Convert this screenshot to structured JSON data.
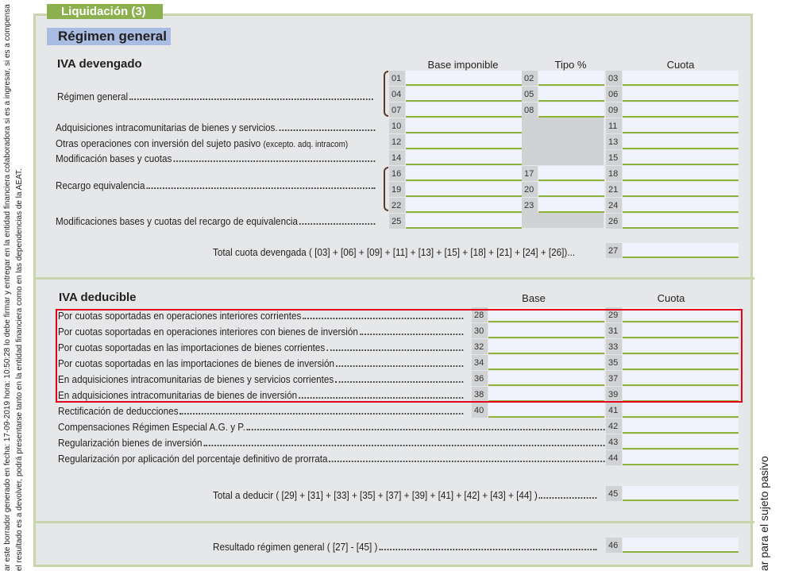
{
  "side_text": {
    "line1": "ar este borrador generado en fecha: 17-09-2019 hora: 10:50:28 lo debe firmar y entregar en la entidad financiera colaboradora si es a ingresar, si es a compensa",
    "line2": "el resultado es a devolver, podrá presentarse tanto en la entidad financiera como en las dependencias de la AEAT.",
    "right": "ar para el sujeto pasivo"
  },
  "tab_title": "Liquidación (3)",
  "section_title": "Régimen general",
  "devengado": {
    "heading": "IVA devengado",
    "col_base": "Base imponible",
    "col_tipo": "Tipo %",
    "col_cuota": "Cuota",
    "labels": {
      "regimen_general": "Régimen general",
      "adquisiciones": "Adquisiciones intracomunitarias de bienes y servicios.",
      "otras": "Otras operaciones con inversión del sujeto pasivo",
      "otras_note": "(excepto. adq. intracom)",
      "modificacion": "Modificación bases y cuotas",
      "recargo": "Recargo equivalencia",
      "modificaciones_recargo": "Modificaciones bases y cuotas del recargo de equivalencia",
      "total": "Total cuota devengada ( [03] + [06] + [09] + [11] + [13] + [15] + [18] + [21] + [24] + [26])..."
    },
    "rows": [
      [
        "01",
        "02",
        "03"
      ],
      [
        "04",
        "05",
        "06"
      ],
      [
        "07",
        "08",
        "09"
      ],
      [
        "10",
        null,
        "11"
      ],
      [
        "12",
        null,
        "13"
      ],
      [
        "14",
        null,
        "15"
      ],
      [
        "16",
        "17",
        "18"
      ],
      [
        "19",
        "20",
        "21"
      ],
      [
        "22",
        "23",
        "24"
      ],
      [
        "25",
        null,
        "26"
      ]
    ],
    "total_code": "27"
  },
  "deducible": {
    "heading": "IVA deducible",
    "col_base": "Base",
    "col_cuota": "Cuota",
    "rows": [
      {
        "label": "Por cuotas soportadas en operaciones interiores corrientes",
        "base": "28",
        "cuota": "29"
      },
      {
        "label": "Por cuotas soportadas en operaciones interiores con bienes de inversión",
        "base": "30",
        "cuota": "31"
      },
      {
        "label": "Por cuotas soportadas en las importaciones de bienes corrientes",
        "base": "32",
        "cuota": "33"
      },
      {
        "label": "Por cuotas soportadas en las importaciones de bienes de inversión",
        "base": "34",
        "cuota": "35"
      },
      {
        "label": "En adquisiciones intracomunitarias de bienes y servicios corrientes",
        "base": "36",
        "cuota": "37"
      },
      {
        "label": "En adquisiciones intracomunitarias de bienes de inversión",
        "base": "38",
        "cuota": "39"
      },
      {
        "label": "Rectificación de deducciones",
        "base": "40",
        "cuota": "41"
      },
      {
        "label": "Compensaciones Régimen Especial A.G. y P.",
        "base": null,
        "cuota": "42"
      },
      {
        "label": "Regularización bienes de inversión",
        "base": null,
        "cuota": "43"
      },
      {
        "label": "Regularización por aplicación del porcentaje definitivo de prorrata",
        "base": null,
        "cuota": "44"
      }
    ],
    "total_label": "Total a deducir ( [29] + [31] + [33] + [35] + [37] + [39] + [41] + [42] + [43] + [44] )",
    "total_code": "45"
  },
  "resultado": {
    "label": "Resultado régimen general ( [27] - [45] )",
    "code": "46"
  },
  "colors": {
    "tab_green": "#8db04e",
    "section_blue": "#a9bde2",
    "highlight_red": "#e3001b",
    "field_underline": "#8db33a"
  }
}
